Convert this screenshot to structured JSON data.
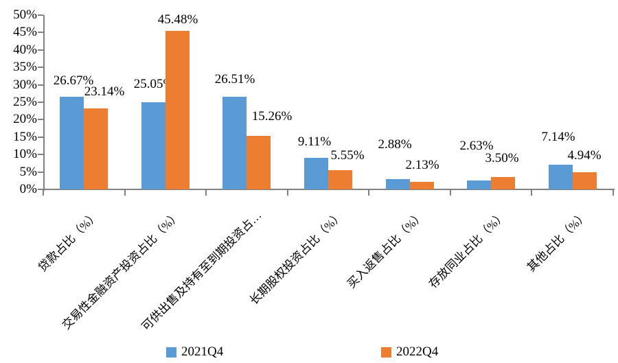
{
  "chart_data": {
    "type": "bar",
    "title": "",
    "xlabel": "",
    "ylabel": "",
    "grid": false,
    "legend_position": "bottom",
    "categories": [
      "贷款占比（%）",
      "交易性金融资产投资占比（%）",
      "可供出售及持有至到期投资占…",
      "长期股权投资占比（%）",
      "买入返售占比（%）",
      "存放同业占比（%）",
      "其他占比（%）"
    ],
    "series": [
      {
        "name": "2021Q4",
        "color": "#5B9BD5",
        "values": [
          26.67,
          25.05,
          26.51,
          9.11,
          2.88,
          2.63,
          7.14
        ],
        "labels": [
          "26.67%",
          "25.05%",
          "26.51%",
          "9.11%",
          "2.88%",
          "2.63%",
          "7.14%"
        ]
      },
      {
        "name": "2022Q4",
        "color": "#ED7D31",
        "values": [
          23.14,
          45.48,
          15.26,
          5.55,
          2.13,
          3.5,
          4.94
        ],
        "labels": [
          "23.14%",
          "45.48%",
          "15.26%",
          "5.55%",
          "2.13%",
          "3.50%",
          "4.94%"
        ]
      }
    ],
    "y_axis": {
      "min": 0,
      "max": 50,
      "step": 5,
      "ticks": [
        "0%",
        "5%",
        "10%",
        "15%",
        "20%",
        "25%",
        "30%",
        "35%",
        "40%",
        "45%",
        "50%"
      ]
    },
    "axis_color": "#808080",
    "text_color": "#000000",
    "background": "#FFFFFF"
  }
}
